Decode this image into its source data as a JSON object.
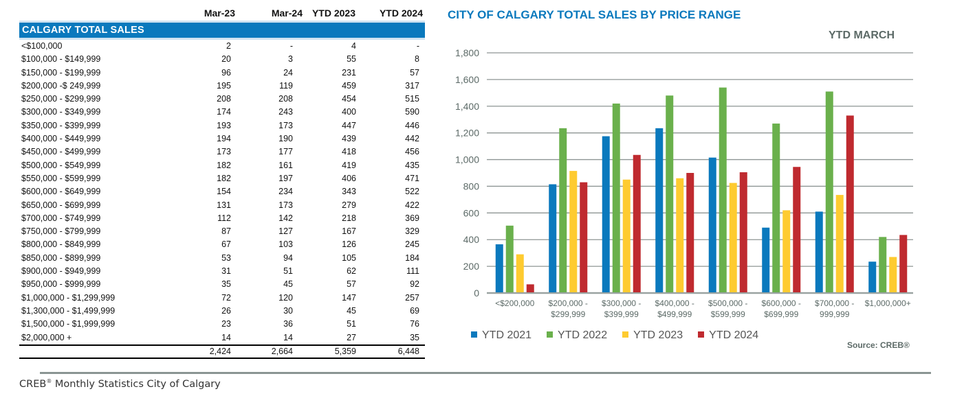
{
  "table": {
    "columns": [
      "Mar-23",
      "Mar-24",
      "YTD 2023",
      "YTD 2024"
    ],
    "section_title": "CALGARY TOTAL SALES",
    "rows": [
      {
        "range": "<$100,000",
        "values": [
          "2",
          "-",
          "4",
          "-"
        ]
      },
      {
        "range": "$100,000 - $149,999",
        "values": [
          "20",
          "3",
          "55",
          "8"
        ]
      },
      {
        "range": "$150,000 - $199,999",
        "values": [
          "96",
          "24",
          "231",
          "57"
        ]
      },
      {
        "range": "$200,000 -$ 249,999",
        "values": [
          "195",
          "119",
          "459",
          "317"
        ]
      },
      {
        "range": "$250,000 - $299,999",
        "values": [
          "208",
          "208",
          "454",
          "515"
        ]
      },
      {
        "range": "$300,000 - $349,999",
        "values": [
          "174",
          "243",
          "400",
          "590"
        ]
      },
      {
        "range": "$350,000 - $399,999",
        "values": [
          "193",
          "173",
          "447",
          "446"
        ]
      },
      {
        "range": "$400,000 - $449,999",
        "values": [
          "194",
          "190",
          "439",
          "442"
        ]
      },
      {
        "range": "$450,000 - $499,999",
        "values": [
          "173",
          "177",
          "418",
          "456"
        ]
      },
      {
        "range": "$500,000 - $549,999",
        "values": [
          "182",
          "161",
          "419",
          "435"
        ]
      },
      {
        "range": "$550,000 - $599,999",
        "values": [
          "182",
          "197",
          "406",
          "471"
        ]
      },
      {
        "range": "$600,000 - $649,999",
        "values": [
          "154",
          "234",
          "343",
          "522"
        ]
      },
      {
        "range": "$650,000 - $699,999",
        "values": [
          "131",
          "173",
          "279",
          "422"
        ]
      },
      {
        "range": "$700,000 - $749,999",
        "values": [
          "112",
          "142",
          "218",
          "369"
        ]
      },
      {
        "range": "$750,000 - $799,999",
        "values": [
          "87",
          "127",
          "167",
          "329"
        ]
      },
      {
        "range": "$800,000 - $849,999",
        "values": [
          "67",
          "103",
          "126",
          "245"
        ]
      },
      {
        "range": "$850,000 - $899,999",
        "values": [
          "53",
          "94",
          "105",
          "184"
        ]
      },
      {
        "range": "$900,000 - $949,999",
        "values": [
          "31",
          "51",
          "62",
          "111"
        ]
      },
      {
        "range": "$950,000 - $999,999",
        "values": [
          "35",
          "45",
          "57",
          "92"
        ]
      },
      {
        "range": "$1,000,000 - $1,299,999",
        "values": [
          "72",
          "120",
          "147",
          "257"
        ]
      },
      {
        "range": "$1,300,000 - $1,499,999",
        "values": [
          "26",
          "30",
          "45",
          "69"
        ]
      },
      {
        "range": "$1,500,000 - $1,999,999",
        "values": [
          "23",
          "36",
          "51",
          "76"
        ]
      },
      {
        "range": "$2,000,000 +",
        "values": [
          "14",
          "14",
          "27",
          "35"
        ]
      }
    ],
    "totals": [
      "2,424",
      "2,664",
      "5,359",
      "6,448"
    ]
  },
  "footer": {
    "brand": "CREB",
    "reg": "®",
    "text": " Monthly Statistics City of Calgary"
  },
  "chart_data": {
    "type": "bar",
    "title": "CITY OF CALGARY TOTAL SALES BY PRICE RANGE",
    "subtitle": "YTD  MARCH",
    "xlabel": "",
    "ylabel": "",
    "ylim": [
      0,
      1800
    ],
    "yticks": [
      0,
      200,
      400,
      600,
      800,
      1000,
      1200,
      1400,
      1600,
      1800
    ],
    "ytick_labels": [
      "0",
      "200",
      "400",
      "600",
      "800",
      "1,000",
      "1,200",
      "1,400",
      "1,600",
      "1,800"
    ],
    "grid": true,
    "legend_position": "bottom-left",
    "categories": [
      [
        "<$200,000"
      ],
      [
        "$200,000 -",
        "$299,999"
      ],
      [
        "$300,000 -",
        "$399,999"
      ],
      [
        "$400,000 -",
        "$499,999"
      ],
      [
        "$500,000 -",
        "$599,999"
      ],
      [
        "$600,000 -",
        "$699,999"
      ],
      [
        "$700,000 -",
        "999,999"
      ],
      [
        "$1,000,000+"
      ]
    ],
    "series": [
      {
        "name": "YTD  2021",
        "color": "#0a79bd",
        "values": [
          365,
          815,
          1175,
          1235,
          1015,
          490,
          610,
          235
        ]
      },
      {
        "name": "YTD  2022",
        "color": "#6ab04c",
        "values": [
          505,
          1235,
          1420,
          1480,
          1540,
          1270,
          1510,
          420
        ]
      },
      {
        "name": "YTD  2023",
        "color": "#fecb30",
        "values": [
          290,
          915,
          850,
          860,
          825,
          620,
          735,
          270
        ]
      },
      {
        "name": "YTD  2024",
        "color": "#bf2a2f",
        "values": [
          65,
          830,
          1035,
          900,
          905,
          945,
          1330,
          435
        ]
      }
    ],
    "source": "Source: CREB®"
  }
}
